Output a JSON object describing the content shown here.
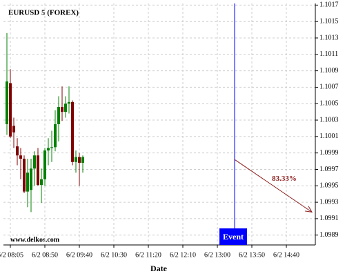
{
  "chart_data": {
    "type": "candlestick",
    "title": "EURUSD 5 (FOREX)",
    "watermark": "www.delkos.com",
    "x_label": "Date",
    "x": [
      0,
      1,
      2,
      3,
      4,
      5,
      6,
      7,
      8,
      9,
      10,
      11,
      12,
      13,
      14,
      15,
      16,
      17,
      18,
      19,
      20,
      21,
      22
    ],
    "open": [
      1.10025,
      1.10075,
      1.10023,
      1.09998,
      1.09987,
      1.09983,
      1.09943,
      1.09945,
      1.09971,
      1.09987,
      1.09951,
      1.09958,
      1.09993,
      1.09996,
      1.09997,
      1.10025,
      1.10046,
      1.1004,
      1.1005,
      1.10052,
      1.09979,
      1.09985,
      1.09978
    ],
    "high": [
      1.10136,
      1.10092,
      1.10033,
      1.10008,
      1.09996,
      1.09987,
      1.09983,
      1.09983,
      1.09992,
      1.09996,
      1.09971,
      1.09996,
      1.10008,
      1.10017,
      1.10042,
      1.10059,
      1.10071,
      1.10059,
      1.10071,
      1.10054,
      1.09993,
      1.0999,
      1.09987
    ],
    "low": [
      1.10012,
      1.10008,
      1.09996,
      1.09975,
      1.09958,
      1.09941,
      1.09924,
      1.09918,
      1.0995,
      1.0995,
      1.09929,
      1.0995,
      1.09975,
      1.09979,
      1.09992,
      1.10004,
      1.10029,
      1.10033,
      1.10038,
      1.09975,
      1.09966,
      1.0995,
      1.09966
    ],
    "close": [
      1.10077,
      1.1001,
      1.10015,
      1.09987,
      1.09983,
      1.09943,
      1.09966,
      1.09971,
      1.09987,
      1.09951,
      1.09958,
      1.09993,
      1.09996,
      1.09997,
      1.10025,
      1.10046,
      1.1004,
      1.1005,
      1.10052,
      1.09979,
      1.09985,
      1.09978,
      1.09985
    ],
    "up_color": "#008000",
    "down_color": "#800000",
    "xlim": [
      -1,
      89.4
    ],
    "xticks": [
      {
        "value": 1,
        "label": "6/2 08:05"
      },
      {
        "value": 11,
        "label": "6/2 08:50"
      },
      {
        "value": 21,
        "label": "6/2 09:40"
      },
      {
        "value": 31,
        "label": "6/2 10:30"
      },
      {
        "value": 41,
        "label": "6/2 11:20"
      },
      {
        "value": 51,
        "label": "6/2 12:10"
      },
      {
        "value": 61,
        "label": "6/2 13:00"
      },
      {
        "value": 71,
        "label": "6/2 13:50"
      },
      {
        "value": 81,
        "label": "6/2 14:40"
      }
    ],
    "ylim": [
      1.09878,
      1.10172
    ],
    "yticks": [
      1.1017,
      1.1015,
      1.1013,
      1.1011,
      1.1009,
      1.1007,
      1.1005,
      1.1003,
      1.1001,
      1.0999,
      1.0997,
      1.0995,
      1.0993,
      1.0991,
      1.0989
    ],
    "grid": true,
    "event": {
      "x": 66,
      "label": "Event",
      "color": "#0000ff"
    },
    "forecast": {
      "x": [
        66,
        88.4
      ],
      "y": [
        1.09982,
        1.09918
      ],
      "label": "83.33%",
      "color": "#8b1a1a"
    }
  }
}
